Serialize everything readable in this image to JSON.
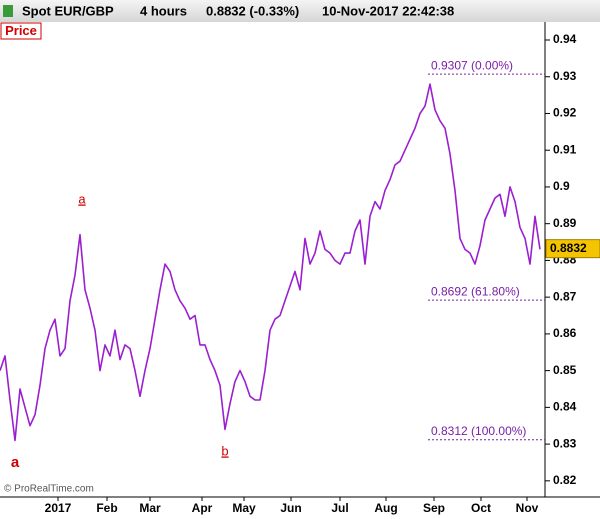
{
  "chart_data": {
    "type": "line",
    "title": "Spot EUR/GBP",
    "interval": "4 hours",
    "change": "0.8832 (-0.33%)",
    "timestamp": "10-Nov-2017 22:42:38",
    "panel_label": "Price",
    "copyright": "© ProRealTime.com",
    "last_price": 0.8832,
    "color": "#9b1fd1",
    "x": [
      0,
      1,
      2,
      3,
      4,
      5,
      6,
      7,
      8,
      9,
      10,
      11,
      12,
      13,
      14,
      15,
      16,
      17,
      18,
      19,
      20,
      21,
      22,
      23,
      24,
      25,
      26,
      27,
      28,
      29,
      30,
      31,
      32,
      33,
      34,
      35,
      36,
      37,
      38,
      39,
      40,
      41,
      42,
      43,
      44,
      45,
      46,
      47,
      48,
      49,
      50,
      51,
      52,
      53,
      54,
      55,
      56,
      57,
      58,
      59,
      60,
      61,
      62,
      63,
      64,
      65,
      66,
      67,
      68,
      69,
      70,
      71,
      72,
      73,
      74,
      75,
      76,
      77,
      78,
      79,
      80,
      81,
      82,
      83,
      84,
      85,
      86,
      87,
      88,
      89,
      90,
      91,
      92,
      93,
      94,
      95,
      96,
      97,
      98,
      99,
      100,
      101,
      102,
      103,
      104,
      105,
      106,
      107,
      108
    ],
    "values": [
      0.85,
      0.854,
      0.842,
      0.831,
      0.845,
      0.84,
      0.835,
      0.838,
      0.846,
      0.856,
      0.861,
      0.864,
      0.854,
      0.856,
      0.869,
      0.876,
      0.887,
      0.872,
      0.867,
      0.861,
      0.85,
      0.857,
      0.854,
      0.861,
      0.853,
      0.857,
      0.856,
      0.85,
      0.843,
      0.85,
      0.856,
      0.864,
      0.872,
      0.879,
      0.877,
      0.872,
      0.869,
      0.867,
      0.864,
      0.865,
      0.857,
      0.857,
      0.853,
      0.85,
      0.846,
      0.834,
      0.841,
      0.847,
      0.85,
      0.847,
      0.843,
      0.842,
      0.842,
      0.85,
      0.861,
      0.864,
      0.865,
      0.869,
      0.873,
      0.877,
      0.872,
      0.886,
      0.879,
      0.882,
      0.888,
      0.883,
      0.882,
      0.88,
      0.879,
      0.882,
      0.882,
      0.888,
      0.891,
      0.879,
      0.892,
      0.896,
      0.894,
      0.899,
      0.902,
      0.906,
      0.907,
      0.91,
      0.913,
      0.916,
      0.92,
      0.922,
      0.928,
      0.921,
      0.918,
      0.916,
      0.909,
      0.899,
      0.886,
      0.883,
      0.882,
      0.879,
      0.884,
      0.891,
      0.894,
      0.897,
      0.898,
      0.892,
      0.9,
      0.896,
      0.889,
      0.886,
      0.879,
      0.892,
      0.883
    ],
    "xlim": [
      0,
      109
    ],
    "xticks": [
      {
        "value": 11.6,
        "label": "2017"
      },
      {
        "value": 21.4,
        "label": "Feb"
      },
      {
        "value": 30,
        "label": "Mar"
      },
      {
        "value": 40.4,
        "label": "Apr"
      },
      {
        "value": 48.8,
        "label": "May"
      },
      {
        "value": 58.2,
        "label": "Jun"
      },
      {
        "value": 68,
        "label": "Jul"
      },
      {
        "value": 77.2,
        "label": "Aug"
      },
      {
        "value": 86.8,
        "label": "Sep"
      },
      {
        "value": 96.2,
        "label": "Oct"
      },
      {
        "value": 105.4,
        "label": "Nov"
      }
    ],
    "ylim": [
      0.8156,
      0.9449
    ],
    "yticks": [
      0.82,
      0.83,
      0.84,
      0.85,
      0.86,
      0.87,
      0.88,
      0.89,
      {
        "value": 0.9,
        "label": "0.9"
      },
      0.91,
      0.92,
      0.93,
      0.94
    ],
    "levels": [
      {
        "value": 0.9307,
        "label": "0.9307 (0.00%)"
      },
      {
        "value": 0.8692,
        "label": "0.8692 (61.80%)"
      },
      {
        "value": 0.8312,
        "label": "0.8312 (100.00%)"
      }
    ],
    "annotations": [
      "a",
      "a",
      "b"
    ]
  }
}
